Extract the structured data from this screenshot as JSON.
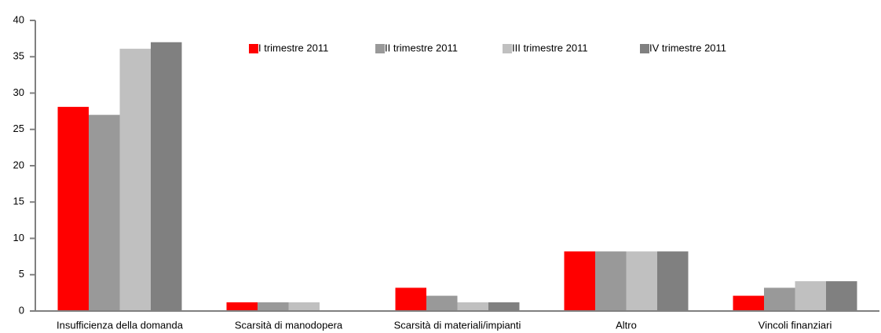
{
  "chart_data": {
    "type": "bar",
    "categories": [
      "Insufficienza della domanda",
      "Scarsità di manodopera",
      "Scarsità di materiali/impianti",
      "Altro",
      "Vincoli finanziari"
    ],
    "series": [
      {
        "name": "I trimestre 2011",
        "color": "#ff0000",
        "values": [
          28.1,
          1.2,
          3.2,
          8.2,
          2.1
        ]
      },
      {
        "name": "II trimestre 2011",
        "color": "#999999",
        "values": [
          27.0,
          1.2,
          2.1,
          8.2,
          3.2
        ]
      },
      {
        "name": "III trimestre 2011",
        "color": "#c0c0c0",
        "values": [
          36.1,
          1.2,
          1.2,
          8.2,
          4.1
        ]
      },
      {
        "name": "IV trimestre 2011",
        "color": "#808080",
        "values": [
          37.0,
          0,
          1.2,
          8.2,
          4.1
        ]
      }
    ],
    "ylim": [
      0,
      40
    ],
    "yticks": [
      0,
      5,
      10,
      15,
      20,
      25,
      30,
      35,
      40
    ],
    "grid": false,
    "legend": "top"
  }
}
